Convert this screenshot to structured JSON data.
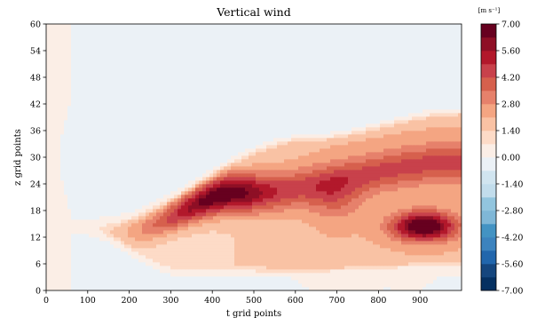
{
  "chart_data": {
    "type": "heatmap",
    "title": "Vertical wind",
    "xlabel": "t grid points",
    "ylabel": "z grid points",
    "xlim": [
      0,
      1000
    ],
    "ylim": [
      0,
      60
    ],
    "xticks": [
      "0",
      "100",
      "200",
      "300",
      "400",
      "500",
      "600",
      "700",
      "800",
      "900"
    ],
    "yticks": [
      "0",
      "6",
      "12",
      "18",
      "24",
      "30",
      "36",
      "42",
      "48",
      "54",
      "60"
    ],
    "colorbar": {
      "unit": "[m s⁻¹]",
      "levels": [
        -7.0,
        -6.3,
        -5.6,
        -4.9,
        -4.2,
        -3.5,
        -2.8,
        -2.1,
        -1.4,
        -0.7,
        0.0,
        0.7,
        1.4,
        2.1,
        2.8,
        3.5,
        4.2,
        4.9,
        5.6,
        6.3,
        7.0
      ],
      "tick_labels": [
        "7.00",
        "5.60",
        "4.20",
        "2.80",
        "1.40",
        "0.00",
        "-1.40",
        "-2.80",
        "-4.20",
        "-5.60",
        "-7.00"
      ],
      "colors": [
        "#053061",
        "#15467e",
        "#2166ac",
        "#3c83be",
        "#4393c3",
        "#7fb7d7",
        "#92c5de",
        "#c2ddec",
        "#d1e5f0",
        "#ebf1f6",
        "#fbeee6",
        "#fddbc7",
        "#f9c2a4",
        "#f4a582",
        "#e6816b",
        "#d6604d",
        "#c8414b",
        "#b2182b",
        "#8e0f25",
        "#67001f"
      ]
    },
    "features": [
      {
        "name": "main_updraft_band",
        "t_start": 100,
        "t_end": 1000,
        "z_range": [
          4,
          40
        ],
        "max_value": 7.0,
        "max_at": {
          "t": 420,
          "z": 22
        }
      },
      {
        "name": "secondary_max",
        "t_range": [
          800,
          1000
        ],
        "z_range": [
          10,
          20
        ],
        "value": 6.3
      },
      {
        "name": "weak_downdraft_region",
        "t_range": [
          380,
          720
        ],
        "z_range": [
          34,
          60
        ],
        "value": -0.3
      }
    ]
  }
}
